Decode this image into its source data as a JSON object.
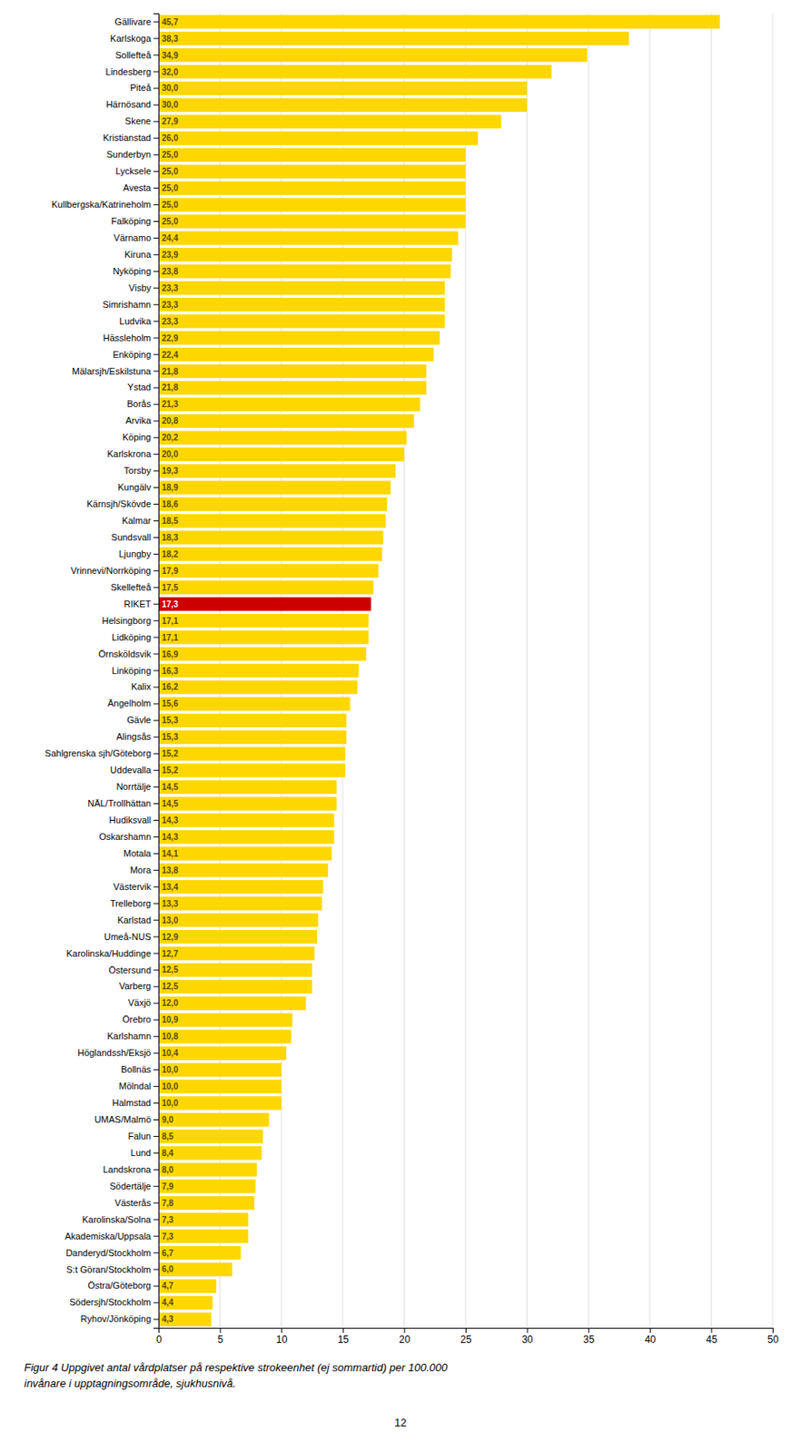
{
  "chart_data": {
    "type": "bar",
    "orientation": "horizontal",
    "categories": [
      "Gällivare",
      "Karlskoga",
      "Sollefteå",
      "Lindesberg",
      "Piteå",
      "Härnösand",
      "Skene",
      "Kristianstad",
      "Sunderbyn",
      "Lycksele",
      "Avesta",
      "Kullbergska/Katrineholm",
      "Falköping",
      "Värnamo",
      "Kiruna",
      "Nyköping",
      "Visby",
      "Simrishamn",
      "Ludvika",
      "Hässleholm",
      "Enköping",
      "Mälarsjh/Eskilstuna",
      "Ystad",
      "Borås",
      "Arvika",
      "Köping",
      "Karlskrona",
      "Torsby",
      "Kungälv",
      "Kärnsjh/Skövde",
      "Kalmar",
      "Sundsvall",
      "Ljungby",
      "Vrinnevi/Norrköping",
      "Skellefteå",
      "RIKET",
      "Helsingborg",
      "Lidköping",
      "Örnsköldsvik",
      "Linköping",
      "Kalix",
      "Ängelholm",
      "Gävle",
      "Alingsås",
      "Sahlgrenska sjh/Göteborg",
      "Uddevalla",
      "Norrtälje",
      "NÄL/Trollhättan",
      "Hudiksvall",
      "Oskarshamn",
      "Motala",
      "Mora",
      "Västervik",
      "Trelleborg",
      "Karlstad",
      "Umeå-NUS",
      "Karolinska/Huddinge",
      "Östersund",
      "Varberg",
      "Växjö",
      "Örebro",
      "Karlshamn",
      "Höglandssh/Eksjö",
      "Bollnäs",
      "Mölndal",
      "Halmstad",
      "UMAS/Malmö",
      "Falun",
      "Lund",
      "Landskrona",
      "Södertälje",
      "Västerås",
      "Karolinska/Solna",
      "Akademiska/Uppsala",
      "Danderyd/Stockholm",
      "S:t Göran/Stockholm",
      "Östra/Göteborg",
      "Södersjh/Stockholm",
      "Ryhov/Jönköping"
    ],
    "values": [
      45.7,
      38.3,
      34.9,
      32.0,
      30.0,
      30.0,
      27.9,
      26.0,
      25.0,
      25.0,
      25.0,
      25.0,
      25.0,
      24.4,
      23.9,
      23.8,
      23.3,
      23.3,
      23.3,
      22.9,
      22.4,
      21.8,
      21.8,
      21.3,
      20.8,
      20.2,
      20.0,
      19.3,
      18.9,
      18.6,
      18.5,
      18.3,
      18.2,
      17.9,
      17.5,
      17.3,
      17.1,
      17.1,
      16.9,
      16.3,
      16.2,
      15.6,
      15.3,
      15.3,
      15.2,
      15.2,
      14.5,
      14.5,
      14.3,
      14.3,
      14.1,
      13.8,
      13.4,
      13.3,
      13.0,
      12.9,
      12.7,
      12.5,
      12.5,
      12.0,
      10.9,
      10.8,
      10.4,
      10.0,
      10.0,
      10.0,
      9.0,
      8.5,
      8.4,
      8.0,
      7.9,
      7.8,
      7.3,
      7.3,
      6.7,
      6.0,
      4.7,
      4.4,
      4.3
    ],
    "value_labels": [
      "45,7",
      "38,3",
      "34,9",
      "32,0",
      "30,0",
      "30,0",
      "27,9",
      "26,0",
      "25,0",
      "25,0",
      "25,0",
      "25,0",
      "25,0",
      "24,4",
      "23,9",
      "23,8",
      "23,3",
      "23,3",
      "23,3",
      "22,9",
      "22,4",
      "21,8",
      "21,8",
      "21,3",
      "20,8",
      "20,2",
      "20,0",
      "19,3",
      "18,9",
      "18,6",
      "18,5",
      "18,3",
      "18,2",
      "17,9",
      "17,5",
      "17,3",
      "17,1",
      "17,1",
      "16,9",
      "16,3",
      "16,2",
      "15,6",
      "15,3",
      "15,3",
      "15,2",
      "15,2",
      "14,5",
      "14,5",
      "14,3",
      "14,3",
      "14,1",
      "13,8",
      "13,4",
      "13,3",
      "13,0",
      "12,9",
      "12,7",
      "12,5",
      "12,5",
      "12,0",
      "10,9",
      "10,8",
      "10,4",
      "10,0",
      "10,0",
      "10,0",
      "9,0",
      "8,5",
      "8,4",
      "8,0",
      "7,9",
      "7,8",
      "7,3",
      "7,3",
      "6,7",
      "6,0",
      "4,7",
      "4,4",
      "4,3"
    ],
    "colors": [
      "#FFD700",
      "#FFD700",
      "#FFD700",
      "#FFD700",
      "#FFD700",
      "#FFD700",
      "#FFD700",
      "#FFD700",
      "#FFD700",
      "#FFD700",
      "#FFD700",
      "#FFD700",
      "#FFD700",
      "#FFD700",
      "#FFD700",
      "#FFD700",
      "#FFD700",
      "#FFD700",
      "#FFD700",
      "#FFD700",
      "#FFD700",
      "#FFD700",
      "#FFD700",
      "#FFD700",
      "#FFD700",
      "#FFD700",
      "#FFD700",
      "#FFD700",
      "#FFD700",
      "#FFD700",
      "#FFD700",
      "#FFD700",
      "#FFD700",
      "#FFD700",
      "#FFD700",
      "#CC0000",
      "#FFD700",
      "#FFD700",
      "#FFD700",
      "#FFD700",
      "#FFD700",
      "#FFD700",
      "#FFD700",
      "#FFD700",
      "#FFD700",
      "#FFD700",
      "#FFD700",
      "#FFD700",
      "#FFD700",
      "#FFD700",
      "#FFD700",
      "#FFD700",
      "#FFD700",
      "#FFD700",
      "#FFD700",
      "#FFD700",
      "#FFD700",
      "#FFD700",
      "#FFD700",
      "#FFD700",
      "#FFD700",
      "#FFD700",
      "#FFD700",
      "#FFD700",
      "#FFD700",
      "#FFD700",
      "#FFD700",
      "#FFD700",
      "#FFD700",
      "#FFD700",
      "#FFD700",
      "#FFD700",
      "#FFD700",
      "#FFD700",
      "#FFD700",
      "#FFD700",
      "#FFD700",
      "#FFD700",
      "#FFD700"
    ],
    "xlim": [
      0,
      50
    ],
    "xticks": [
      0,
      5,
      10,
      15,
      20,
      25,
      30,
      35,
      40,
      45,
      50
    ],
    "grid": true,
    "data_labels": true,
    "annotations": [
      "Figur 4 Uppgivet antal vårdplatser på respektive strokeenhet (ej sommartid) per 100.000",
      "invånare i upptagningsområde, sjukhusnivå.",
      "12"
    ]
  }
}
